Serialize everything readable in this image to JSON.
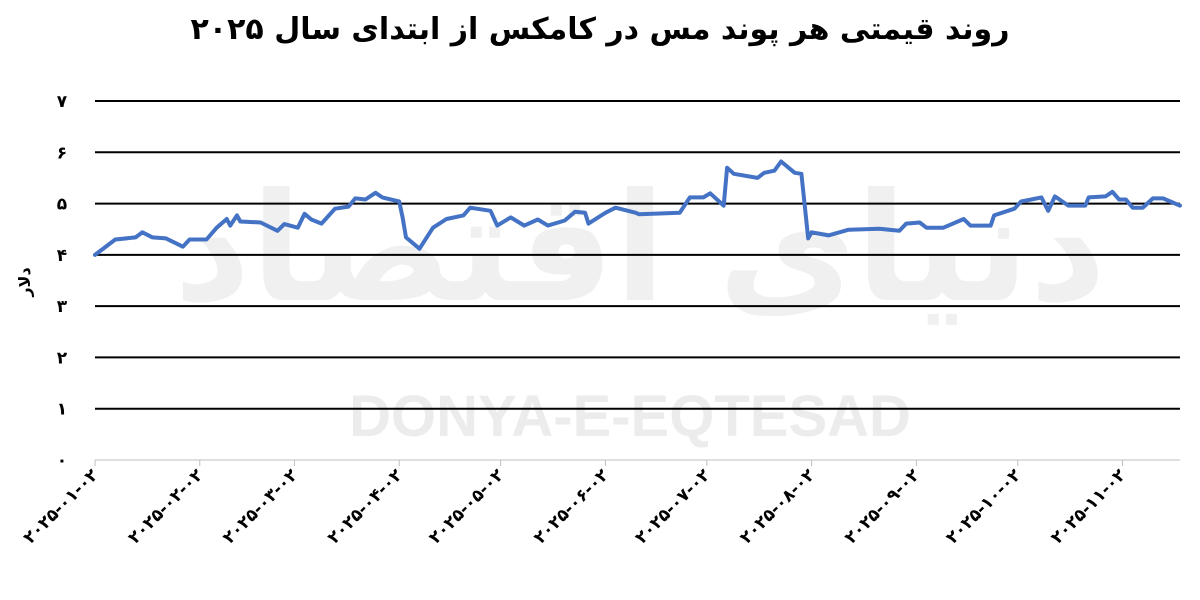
{
  "chart_data": {
    "type": "line",
    "title": "روند قیمتی هر پوند مس در کامکس از ابتدای سال ۲۰۲۵",
    "ylabel": "دلار",
    "xlabel": "",
    "ylim": [
      0,
      7
    ],
    "yticks": [
      "۰",
      "۱",
      "۲",
      "۳",
      "۴",
      "۵",
      "۶",
      "۷"
    ],
    "xticks": [
      {
        "date": "2025-01-02",
        "label": "۲۰۲۵-۰۱-۰۲"
      },
      {
        "date": "2025-02-02",
        "label": "۲۰۲۵-۰۲-۰۲"
      },
      {
        "date": "2025-03-02",
        "label": "۲۰۲۵-۰۳-۰۲"
      },
      {
        "date": "2025-04-02",
        "label": "۲۰۲۵-۰۴-۰۲"
      },
      {
        "date": "2025-05-02",
        "label": "۲۰۲۵-۰۵-۰۲"
      },
      {
        "date": "2025-06-02",
        "label": "۲۰۲۵-۰۶-۰۲"
      },
      {
        "date": "2025-07-02",
        "label": "۲۰۲۵-۰۷-۰۲"
      },
      {
        "date": "2025-08-02",
        "label": "۲۰۲۵-۰۸-۰۲"
      },
      {
        "date": "2025-09-02",
        "label": "۲۰۲۵-۰۹-۰۲"
      },
      {
        "date": "2025-10-02",
        "label": "۲۰۲۵-۱۰-۰۲"
      },
      {
        "date": "2025-11-02",
        "label": "۲۰۲۵-۱۱-۰۲"
      }
    ],
    "grid": true,
    "legend": "none",
    "line_color": "#4472C4",
    "watermark": "DONYA-E-EQTESAD",
    "watermark_persian": "دنیای اقتصاد",
    "x": [
      "2025-01-02",
      "2025-01-08",
      "2025-01-14",
      "2025-01-16",
      "2025-01-19",
      "2025-01-23",
      "2025-01-28",
      "2025-01-30",
      "2025-02-04",
      "2025-02-07",
      "2025-02-10",
      "2025-02-11",
      "2025-02-13",
      "2025-02-14",
      "2025-02-20",
      "2025-02-25",
      "2025-02-27",
      "2025-03-03",
      "2025-03-05",
      "2025-03-07",
      "2025-03-10",
      "2025-03-14",
      "2025-03-18",
      "2025-03-20",
      "2025-03-23",
      "2025-03-26",
      "2025-03-28",
      "2025-04-02",
      "2025-04-03",
      "2025-04-04",
      "2025-04-08",
      "2025-04-12",
      "2025-04-16",
      "2025-04-21",
      "2025-04-23",
      "2025-04-29",
      "2025-05-01",
      "2025-05-05",
      "2025-05-09",
      "2025-05-13",
      "2025-05-16",
      "2025-05-21",
      "2025-05-24",
      "2025-05-27",
      "2025-05-28",
      "2025-06-02",
      "2025-06-05",
      "2025-06-11",
      "2025-06-12",
      "2025-06-24",
      "2025-06-27",
      "2025-07-01",
      "2025-07-03",
      "2025-07-07",
      "2025-07-08",
      "2025-07-10",
      "2025-07-17",
      "2025-07-19",
      "2025-07-22",
      "2025-07-24",
      "2025-07-28",
      "2025-07-30",
      "2025-08-01",
      "2025-08-02",
      "2025-08-07",
      "2025-08-13",
      "2025-08-22",
      "2025-08-28",
      "2025-08-30",
      "2025-09-03",
      "2025-09-05",
      "2025-09-10",
      "2025-09-16",
      "2025-09-18",
      "2025-09-24",
      "2025-09-25",
      "2025-10-01",
      "2025-10-03",
      "2025-10-06",
      "2025-10-09",
      "2025-10-11",
      "2025-10-13",
      "2025-10-17",
      "2025-10-22",
      "2025-10-23",
      "2025-10-28",
      "2025-10-30",
      "2025-11-01",
      "2025-11-03",
      "2025-11-05",
      "2025-11-08",
      "2025-11-11",
      "2025-11-14",
      "2025-11-19"
    ],
    "y": [
      4.0,
      4.3,
      4.34,
      4.44,
      4.34,
      4.32,
      4.16,
      4.3,
      4.3,
      4.53,
      4.7,
      4.57,
      4.77,
      4.65,
      4.63,
      4.47,
      4.6,
      4.53,
      4.8,
      4.69,
      4.61,
      4.9,
      4.94,
      5.1,
      5.08,
      5.21,
      5.12,
      5.04,
      4.73,
      4.34,
      4.12,
      4.53,
      4.7,
      4.77,
      4.92,
      4.86,
      4.57,
      4.73,
      4.57,
      4.69,
      4.57,
      4.67,
      4.84,
      4.82,
      4.61,
      4.82,
      4.92,
      4.82,
      4.79,
      4.82,
      5.12,
      5.12,
      5.2,
      4.96,
      5.7,
      5.58,
      5.5,
      5.6,
      5.64,
      5.82,
      5.6,
      5.58,
      4.32,
      4.44,
      4.38,
      4.49,
      4.51,
      4.47,
      4.61,
      4.63,
      4.53,
      4.53,
      4.7,
      4.57,
      4.57,
      4.77,
      4.9,
      5.04,
      5.08,
      5.12,
      4.86,
      5.14,
      4.96,
      4.96,
      5.12,
      5.14,
      5.23,
      5.08,
      5.08,
      4.92,
      4.92,
      5.1,
      5.1,
      4.96
    ]
  }
}
